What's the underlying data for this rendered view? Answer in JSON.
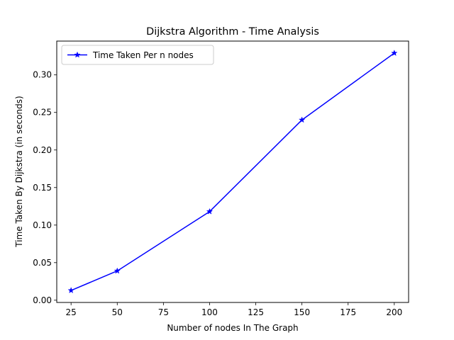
{
  "chart_data": {
    "type": "line",
    "title": "Dijkstra Algorithm - Time Analysis",
    "xlabel": "Number of nodes In The Graph",
    "ylabel": "Time Taken By Dijkstra (in seconds)",
    "xlim": [
      17.25,
      207.75
    ],
    "ylim": [
      -0.003,
      0.345
    ],
    "x_ticks": [
      25,
      50,
      75,
      100,
      125,
      150,
      175,
      200
    ],
    "y_ticks": [
      0.0,
      0.05,
      0.1,
      0.15,
      0.2,
      0.25,
      0.3
    ],
    "y_tick_labels": [
      "0.00",
      "0.05",
      "0.10",
      "0.15",
      "0.20",
      "0.25",
      "0.30"
    ],
    "grid": false,
    "legend_position": "top-left",
    "x": [
      25,
      50,
      100,
      150,
      200
    ],
    "series": [
      {
        "name": "Time Taken Per n nodes",
        "values": [
          0.013,
          0.039,
          0.118,
          0.24,
          0.329
        ],
        "color": "#0000ff",
        "marker": "star"
      }
    ]
  }
}
